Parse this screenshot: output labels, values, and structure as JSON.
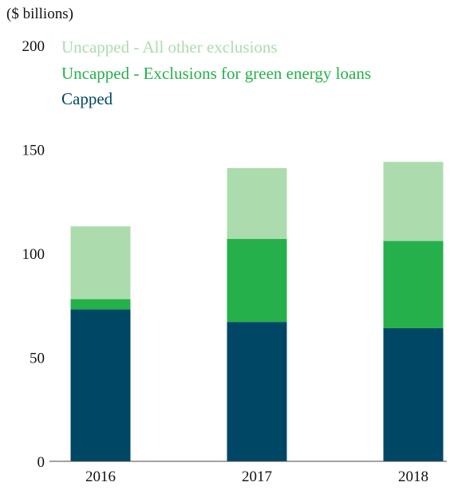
{
  "chart_data": {
    "type": "bar",
    "stacked": true,
    "unit_label": "($ billions)",
    "categories": [
      "2016",
      "2017",
      "2018"
    ],
    "y_ticks": [
      "0",
      "50",
      "100",
      "150",
      "200"
    ],
    "ylim": [
      0,
      200
    ],
    "grid": false,
    "legend_position": "top-left",
    "series": [
      {
        "name": "Capped",
        "color": "#004766",
        "values": [
          73,
          67,
          64
        ]
      },
      {
        "name": "Uncapped - Exclusions for green energy loans",
        "color": "#25b04b",
        "values": [
          5,
          40,
          42
        ]
      },
      {
        "name": "Uncapped - All other exclusions",
        "color": "#acdcad",
        "values": [
          35,
          34,
          38
        ]
      }
    ],
    "legend_order": [
      "Uncapped - All other exclusions",
      "Uncapped - Exclusions for green energy loans",
      "Capped"
    ]
  }
}
